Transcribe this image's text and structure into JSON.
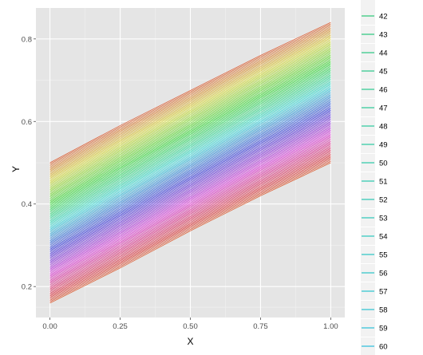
{
  "chart_data": {
    "type": "line",
    "xlabel": "X",
    "ylabel": "Y",
    "xlim": [
      -0.05,
      1.05
    ],
    "ylim": [
      0.125,
      0.875
    ],
    "x_ticks": [
      0.0,
      0.25,
      0.5,
      0.75,
      1.0
    ],
    "x_tick_labels": [
      "0.00",
      "0.25",
      "0.50",
      "0.75",
      "1.00"
    ],
    "y_ticks": [
      0.2,
      0.4,
      0.6,
      0.8
    ],
    "y_tick_labels": [
      "0.2",
      "0.4",
      "0.6",
      "0.8"
    ],
    "grid": true,
    "background": "#e5e5e5",
    "grid_color": "#ffffff",
    "x": [
      0,
      0.25,
      0.5,
      0.75,
      1.0
    ],
    "series_count": 100,
    "series_lowest_curve": [
      0.16,
      0.245,
      0.335,
      0.42,
      0.5
    ],
    "series_highest_curve": [
      0.5,
      0.59,
      0.675,
      0.76,
      0.84
    ],
    "series_color_scale": "hue, red through yellow, green, cyan, blue, magenta back to red",
    "series_order": "series 1 is the top curve; the last series is the bottom curve",
    "legend": {
      "position": "right",
      "visible_entries": [
        "42",
        "43",
        "44",
        "45",
        "46",
        "47",
        "48",
        "49",
        "50",
        "51",
        "52",
        "53",
        "54",
        "55",
        "56",
        "57",
        "58",
        "59",
        "60"
      ],
      "entry_colors": [
        "#00BD5C",
        "#00BD64",
        "#00BE6C",
        "#00BF74",
        "#00C07B",
        "#00C082",
        "#00C089",
        "#00C090",
        "#00C097",
        "#00BF9E",
        "#00BFA5",
        "#00BEAC",
        "#00BDB2",
        "#00BCB9",
        "#00BBBF",
        "#00B9C5",
        "#00B8CB",
        "#00B5D1",
        "#00B3D6"
      ]
    }
  }
}
